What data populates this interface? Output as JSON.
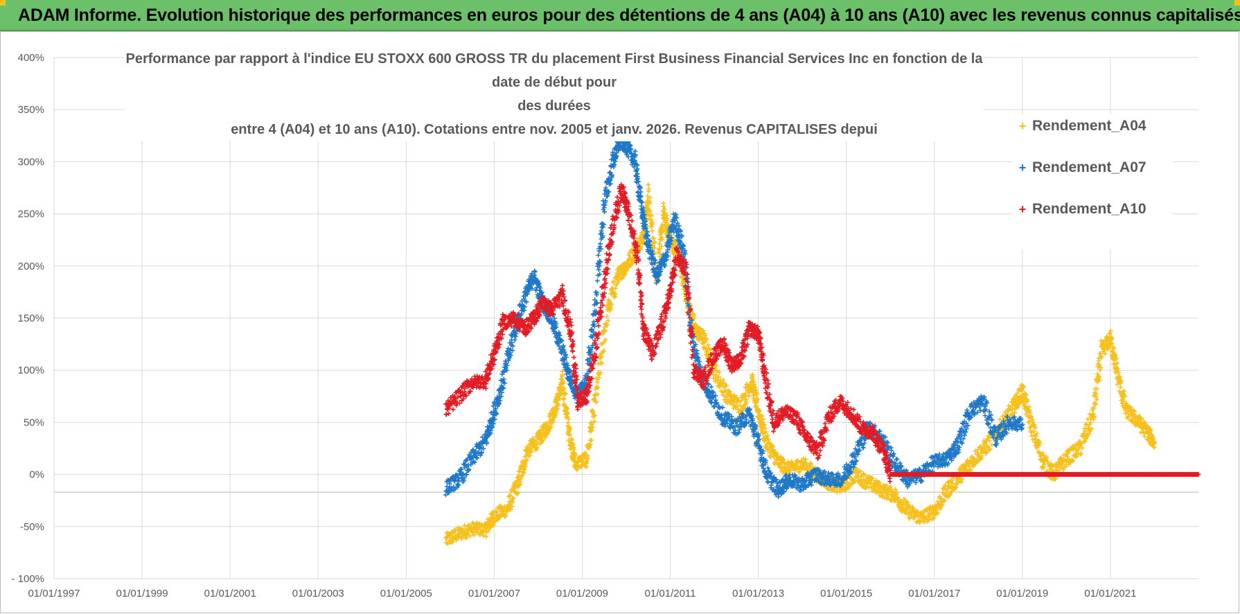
{
  "header": {
    "title": "ADAM Informe. Evolution historique des performances en euros pour des détentions de 4 ans (A04) à 10 ans (A10) avec les revenus connus capitalisés"
  },
  "colors": {
    "banner": "#6cc069",
    "A04": "#f6c01d",
    "A07": "#1f78c8",
    "A10": "#e11c25",
    "grid": "#d9d9d9"
  },
  "chart_data": {
    "type": "scatter",
    "title_lines": [
      "Performance par rapport à l'indice EU STOXX 600 GROSS TR  du placement First Business Financial Services Inc en fonction de la date de début pour",
      "des durées",
      "entre 4 (A04) et 10 ans (A10). Cotations entre nov. 2005 et janv. 2026. Revenus CAPITALISES depui"
    ],
    "xlabel": "",
    "ylabel": "",
    "ylim": [
      -100,
      400
    ],
    "y_ticks": [
      "400%",
      "350%",
      "300%",
      "250%",
      "200%",
      "150%",
      "100%",
      "50%",
      "0%",
      "-50%",
      "- 100%"
    ],
    "y_tick_values": [
      400,
      350,
      300,
      250,
      200,
      150,
      100,
      50,
      0,
      -50,
      -100
    ],
    "xlim": [
      1997.0,
      2023.0
    ],
    "x_ticks": [
      "01/01/1997",
      "01/01/1999",
      "01/01/2001",
      "01/01/2003",
      "01/01/2005",
      "01/01/2007",
      "01/01/2009",
      "01/01/2011",
      "01/01/2013",
      "01/01/2015",
      "01/01/2017",
      "01/01/2019",
      "01/01/2021"
    ],
    "x_tick_values": [
      1997,
      1999,
      2001,
      2003,
      2005,
      2007,
      2009,
      2011,
      2013,
      2015,
      2017,
      2019,
      2021
    ],
    "legend": {
      "position": "top-right"
    },
    "series": [
      {
        "name": "Rendement_A04",
        "marker": "+",
        "points": [
          [
            2005.9,
            -63
          ],
          [
            2006.2,
            -57
          ],
          [
            2006.5,
            -52
          ],
          [
            2006.8,
            -53
          ],
          [
            2007.0,
            -40
          ],
          [
            2007.3,
            -33
          ],
          [
            2007.55,
            -8
          ],
          [
            2007.75,
            22
          ],
          [
            2008.0,
            33
          ],
          [
            2008.2,
            45
          ],
          [
            2008.4,
            65
          ],
          [
            2008.55,
            88
          ],
          [
            2008.7,
            40
          ],
          [
            2008.85,
            10
          ],
          [
            2009.1,
            15
          ],
          [
            2009.3,
            70
          ],
          [
            2009.55,
            150
          ],
          [
            2009.8,
            190
          ],
          [
            2010.0,
            200
          ],
          [
            2010.2,
            215
          ],
          [
            2010.4,
            230
          ],
          [
            2010.5,
            265
          ],
          [
            2010.7,
            190
          ],
          [
            2010.85,
            250
          ],
          [
            2011.0,
            225
          ],
          [
            2011.2,
            210
          ],
          [
            2011.35,
            175
          ],
          [
            2011.55,
            140
          ],
          [
            2011.75,
            130
          ],
          [
            2012.0,
            100
          ],
          [
            2012.3,
            75
          ],
          [
            2012.6,
            65
          ],
          [
            2012.85,
            90
          ],
          [
            2013.0,
            60
          ],
          [
            2013.2,
            30
          ],
          [
            2013.45,
            12
          ],
          [
            2013.7,
            5
          ],
          [
            2014.0,
            10
          ],
          [
            2014.3,
            0
          ],
          [
            2014.6,
            -8
          ],
          [
            2014.9,
            -12
          ],
          [
            2015.2,
            0
          ],
          [
            2015.5,
            -8
          ],
          [
            2015.8,
            -15
          ],
          [
            2016.1,
            -20
          ],
          [
            2016.4,
            -35
          ],
          [
            2016.7,
            -42
          ],
          [
            2017.0,
            -35
          ],
          [
            2017.3,
            -15
          ],
          [
            2017.6,
            0
          ],
          [
            2017.9,
            15
          ],
          [
            2018.2,
            28
          ],
          [
            2018.5,
            45
          ],
          [
            2018.8,
            65
          ],
          [
            2019.0,
            80
          ],
          [
            2019.2,
            48
          ],
          [
            2019.45,
            15
          ],
          [
            2019.7,
            0
          ],
          [
            2020.0,
            15
          ],
          [
            2020.3,
            25
          ],
          [
            2020.6,
            55
          ],
          [
            2020.8,
            118
          ],
          [
            2021.0,
            130
          ],
          [
            2021.15,
            98
          ],
          [
            2021.35,
            62
          ],
          [
            2021.6,
            52
          ],
          [
            2021.85,
            40
          ],
          [
            2022.0,
            30
          ]
        ]
      },
      {
        "name": "Rendement_A07",
        "marker": "+",
        "points": [
          [
            2005.9,
            -13
          ],
          [
            2006.2,
            -5
          ],
          [
            2006.5,
            15
          ],
          [
            2006.8,
            32
          ],
          [
            2007.0,
            60
          ],
          [
            2007.2,
            90
          ],
          [
            2007.45,
            135
          ],
          [
            2007.7,
            170
          ],
          [
            2007.9,
            190
          ],
          [
            2008.1,
            165
          ],
          [
            2008.3,
            150
          ],
          [
            2008.5,
            125
          ],
          [
            2008.7,
            95
          ],
          [
            2008.9,
            75
          ],
          [
            2009.1,
            90
          ],
          [
            2009.3,
            160
          ],
          [
            2009.5,
            260
          ],
          [
            2009.7,
            300
          ],
          [
            2009.85,
            320
          ],
          [
            2010.0,
            315
          ],
          [
            2010.2,
            300
          ],
          [
            2010.35,
            255
          ],
          [
            2010.5,
            220
          ],
          [
            2010.7,
            190
          ],
          [
            2010.9,
            210
          ],
          [
            2011.1,
            245
          ],
          [
            2011.3,
            215
          ],
          [
            2011.5,
            130
          ],
          [
            2011.7,
            95
          ],
          [
            2011.9,
            78
          ],
          [
            2012.2,
            55
          ],
          [
            2012.5,
            45
          ],
          [
            2012.8,
            58
          ],
          [
            2013.0,
            30
          ],
          [
            2013.2,
            0
          ],
          [
            2013.45,
            -15
          ],
          [
            2013.7,
            -5
          ],
          [
            2014.0,
            -10
          ],
          [
            2014.3,
            0
          ],
          [
            2014.6,
            -5
          ],
          [
            2014.9,
            -5
          ],
          [
            2015.2,
            18
          ],
          [
            2015.5,
            45
          ],
          [
            2015.8,
            35
          ],
          [
            2016.1,
            10
          ],
          [
            2016.4,
            -5
          ],
          [
            2016.7,
            0
          ],
          [
            2017.0,
            12
          ],
          [
            2017.3,
            15
          ],
          [
            2017.55,
            30
          ],
          [
            2017.8,
            60
          ],
          [
            2018.1,
            70
          ],
          [
            2018.4,
            35
          ],
          [
            2018.7,
            50
          ],
          [
            2019.0,
            48
          ]
        ]
      },
      {
        "name": "Rendement_A10",
        "marker": "+",
        "points": [
          [
            2005.9,
            62
          ],
          [
            2006.2,
            75
          ],
          [
            2006.5,
            88
          ],
          [
            2006.8,
            90
          ],
          [
            2007.0,
            115
          ],
          [
            2007.2,
            145
          ],
          [
            2007.45,
            150
          ],
          [
            2007.7,
            140
          ],
          [
            2007.9,
            150
          ],
          [
            2008.1,
            165
          ],
          [
            2008.3,
            158
          ],
          [
            2008.55,
            172
          ],
          [
            2008.75,
            135
          ],
          [
            2008.9,
            70
          ],
          [
            2009.1,
            75
          ],
          [
            2009.3,
            120
          ],
          [
            2009.5,
            185
          ],
          [
            2009.7,
            240
          ],
          [
            2009.9,
            275
          ],
          [
            2010.05,
            250
          ],
          [
            2010.25,
            210
          ],
          [
            2010.4,
            140
          ],
          [
            2010.6,
            115
          ],
          [
            2010.85,
            150
          ],
          [
            2011.0,
            175
          ],
          [
            2011.15,
            210
          ],
          [
            2011.35,
            195
          ],
          [
            2011.55,
            100
          ],
          [
            2011.75,
            90
          ],
          [
            2012.0,
            115
          ],
          [
            2012.2,
            125
          ],
          [
            2012.4,
            105
          ],
          [
            2012.6,
            110
          ],
          [
            2012.8,
            140
          ],
          [
            2013.0,
            135
          ],
          [
            2013.15,
            95
          ],
          [
            2013.35,
            50
          ],
          [
            2013.6,
            60
          ],
          [
            2013.85,
            55
          ],
          [
            2014.1,
            35
          ],
          [
            2014.35,
            22
          ],
          [
            2014.6,
            55
          ],
          [
            2014.85,
            70
          ],
          [
            2015.1,
            60
          ],
          [
            2015.35,
            45
          ],
          [
            2015.6,
            40
          ],
          [
            2015.85,
            22
          ],
          [
            2016.0,
            0
          ],
          [
            2016.5,
            0
          ],
          [
            2017.0,
            0
          ],
          [
            2017.5,
            0
          ],
          [
            2018.0,
            0
          ],
          [
            2018.5,
            0
          ],
          [
            2019.0,
            0
          ],
          [
            2019.5,
            0
          ],
          [
            2020.0,
            0
          ],
          [
            2020.5,
            0
          ],
          [
            2021.0,
            0
          ],
          [
            2021.5,
            0
          ],
          [
            2022.0,
            0
          ],
          [
            2022.5,
            0
          ],
          [
            2023.0,
            0
          ]
        ]
      }
    ]
  }
}
